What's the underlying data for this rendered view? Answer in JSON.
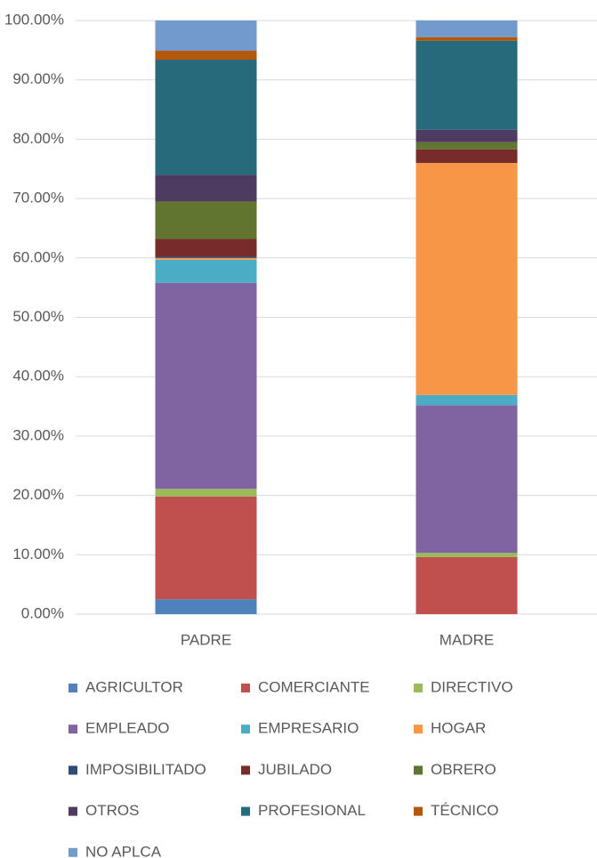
{
  "chart_data": {
    "type": "stacked_bar",
    "categories": [
      "PADRE",
      "MADRE"
    ],
    "ylim": [
      0,
      100
    ],
    "yticks": [
      {
        "value": 0,
        "label": "0.00%"
      },
      {
        "value": 10,
        "label": "10.00%"
      },
      {
        "value": 20,
        "label": "20.00%"
      },
      {
        "value": 30,
        "label": "30.00%"
      },
      {
        "value": 40,
        "label": "40.00%"
      },
      {
        "value": 50,
        "label": "50.00%"
      },
      {
        "value": 60,
        "label": "60.00%"
      },
      {
        "value": 70,
        "label": "70.00%"
      },
      {
        "value": 80,
        "label": "80.00%"
      },
      {
        "value": 90,
        "label": "90.00%"
      },
      {
        "value": 100,
        "label": "100.00%"
      }
    ],
    "grid": true,
    "legend": "bottom",
    "series": [
      {
        "name": "AGRICULTOR",
        "color": "#4f81bd",
        "values": [
          2.5,
          0
        ]
      },
      {
        "name": "COMERCIANTE",
        "color": "#c0504d",
        "values": [
          17.3,
          9.6
        ]
      },
      {
        "name": "DIRECTIVO",
        "color": "#9bbb59",
        "values": [
          1.3,
          0.7
        ]
      },
      {
        "name": "EMPLEADO",
        "color": "#8064a2",
        "values": [
          34.7,
          24.9
        ]
      },
      {
        "name": "EMPRESARIO",
        "color": "#4bacc6",
        "values": [
          3.9,
          1.7
        ]
      },
      {
        "name": "HOGAR",
        "color": "#f79646",
        "values": [
          0.3,
          39.1
        ]
      },
      {
        "name": "IMPOSIBILITADO",
        "color": "#2c4d75",
        "values": [
          0.2,
          0
        ]
      },
      {
        "name": "JUBILADO",
        "color": "#772c2a",
        "values": [
          3.0,
          2.3
        ]
      },
      {
        "name": "OBRERO",
        "color": "#5f7530",
        "values": [
          6.3,
          1.2
        ]
      },
      {
        "name": "OTROS",
        "color": "#4d3b62",
        "values": [
          4.5,
          2.1
        ]
      },
      {
        "name": "PROFESIONAL",
        "color": "#276a7c",
        "values": [
          19.4,
          15.0
        ]
      },
      {
        "name": "TÉCNICO",
        "color": "#b65708",
        "values": [
          1.5,
          0.6
        ]
      },
      {
        "name": "NO APLCA",
        "color": "#729aca",
        "values": [
          5.1,
          2.8
        ]
      }
    ]
  }
}
